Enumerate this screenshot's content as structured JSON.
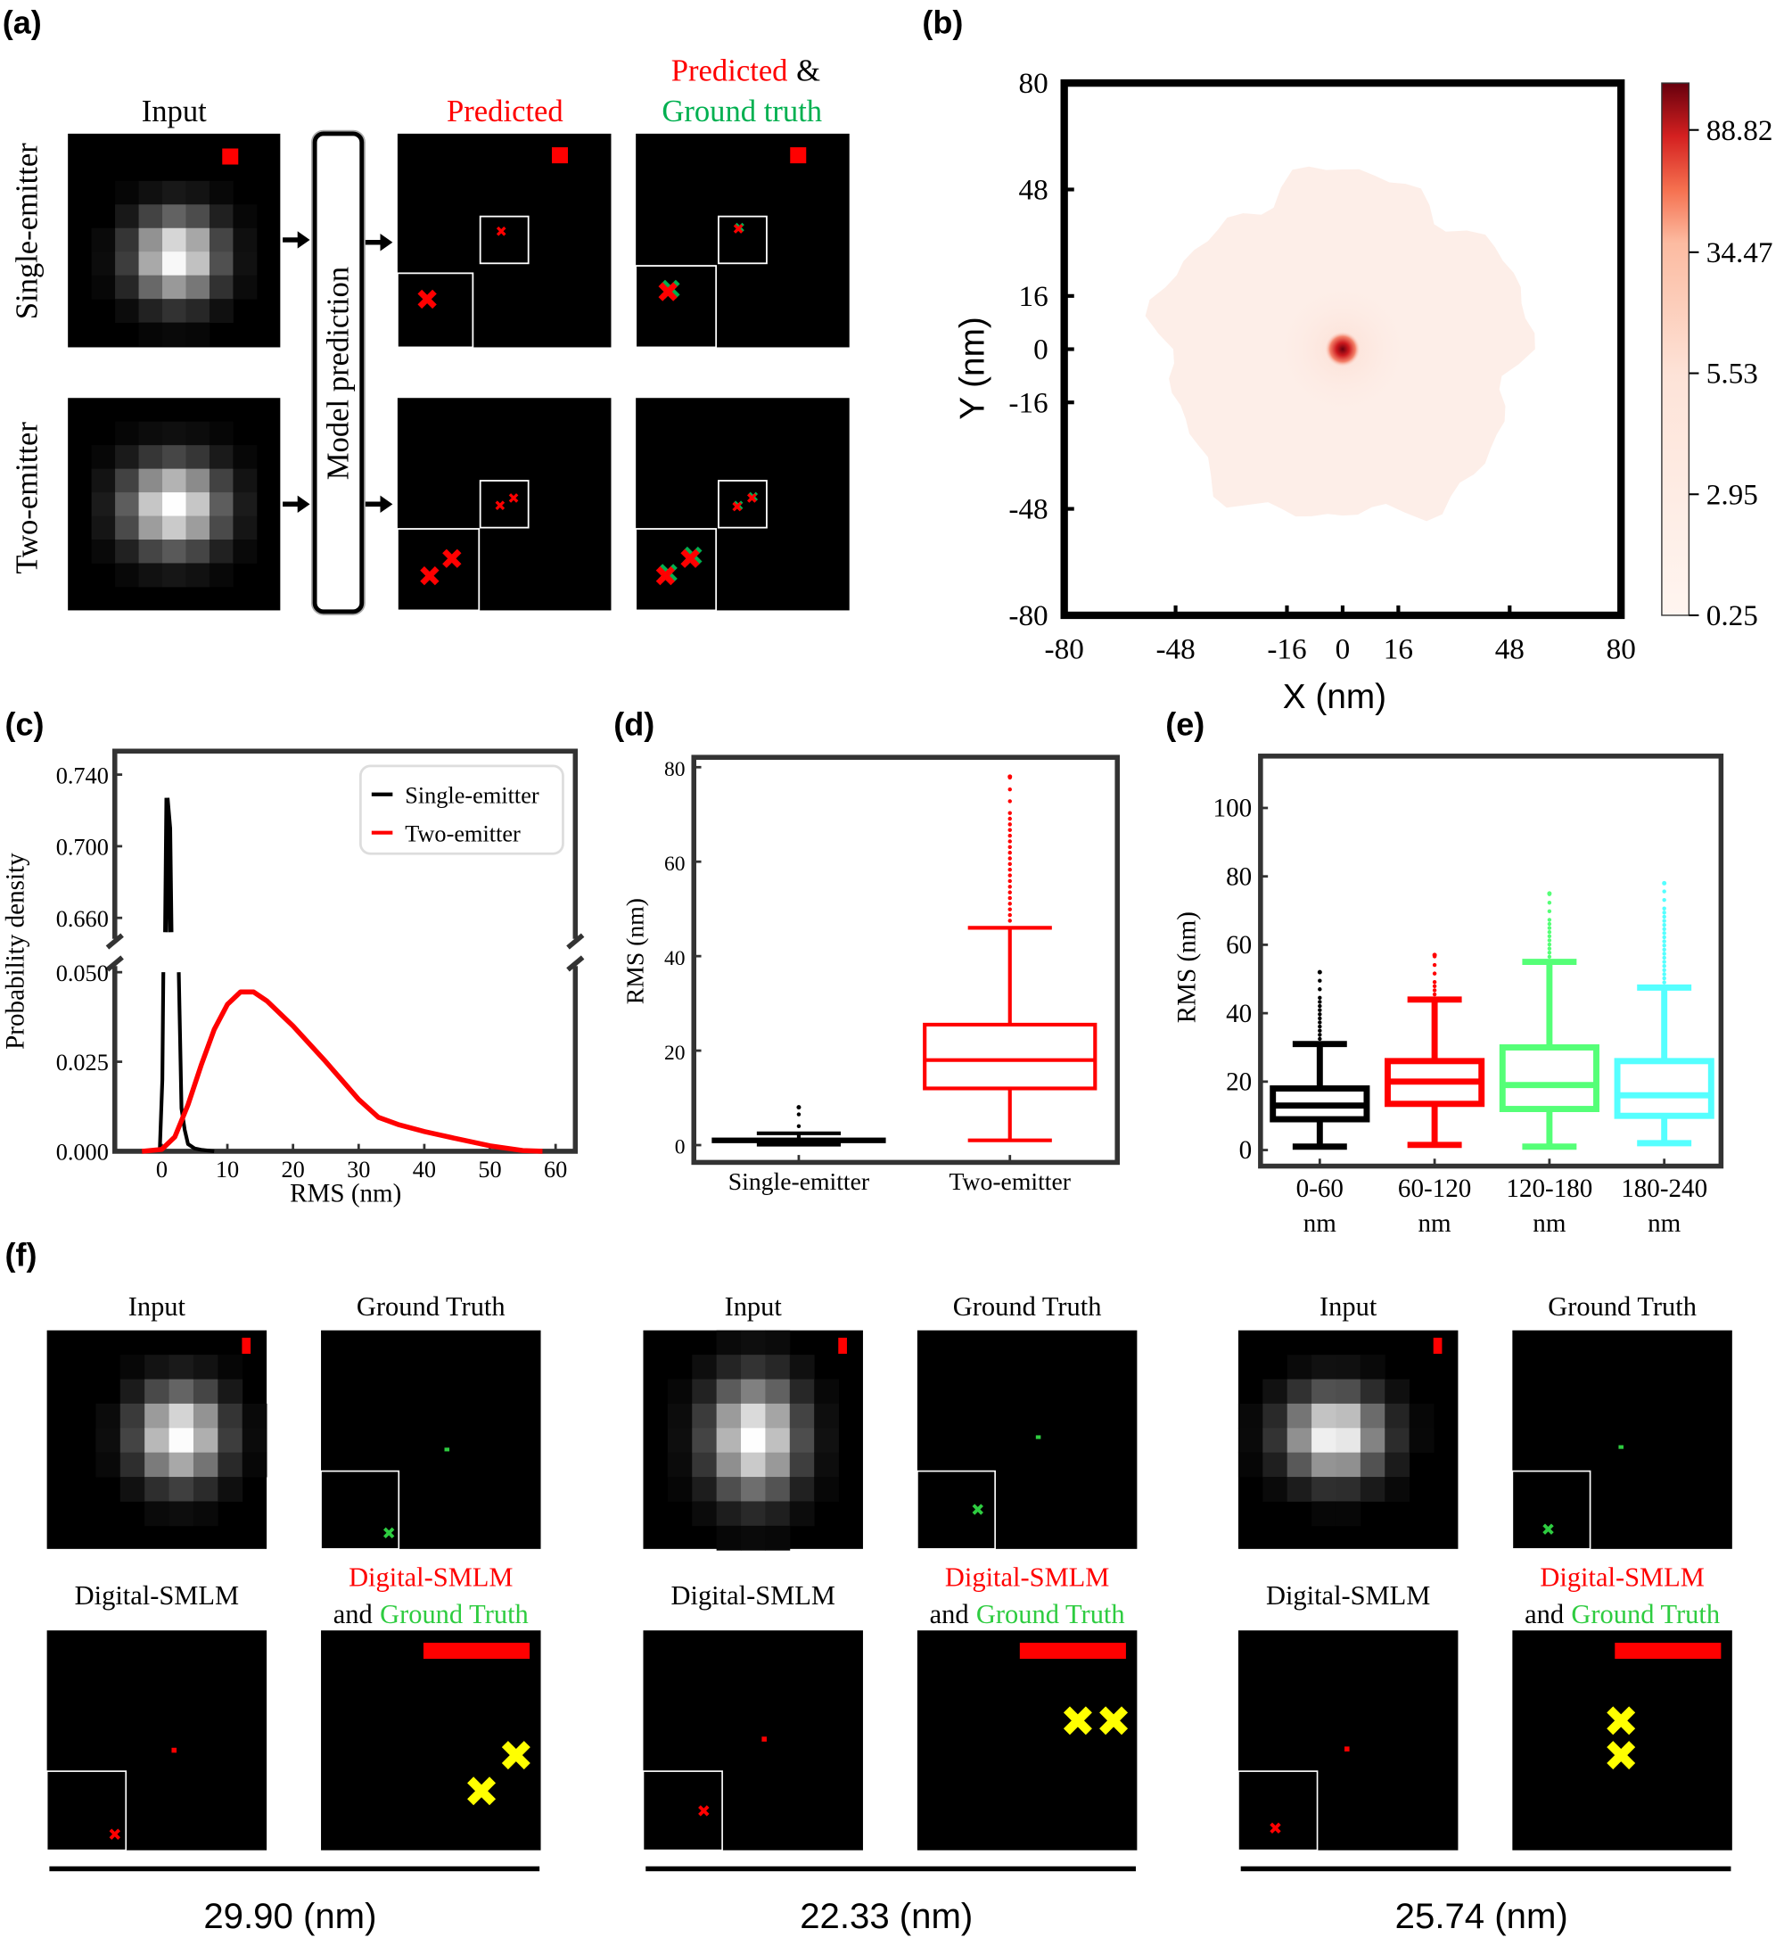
{
  "panel_labels": {
    "a": "(a)",
    "b": "(b)",
    "c": "(c)",
    "d": "(d)",
    "e": "(e)",
    "f": "(f)"
  },
  "panel_a": {
    "col_input": "Input",
    "col_predicted": "Predicted",
    "col_pred_gt_line1": "Predicted",
    "col_pred_gt_amp": "&",
    "col_pred_gt_line2": "Ground truth",
    "row_single": "Single-emitter",
    "row_two": "Two-emitter",
    "model_box": "Model prediction",
    "colors": {
      "predicted": "#ff0000",
      "ground_truth": "#00b050"
    }
  },
  "panel_f": {
    "col_input": "Input",
    "col_gt": "Ground Truth",
    "col_digital": "Digital-SMLM",
    "col_overlay_line1": "Digital-SMLM",
    "col_overlay_and": "and",
    "col_overlay_gt": "Ground Truth",
    "groups": [
      {
        "rms": "29.90 (nm)"
      },
      {
        "rms": "22.33 (nm)"
      },
      {
        "rms": "25.74 (nm)"
      }
    ],
    "colors": {
      "predicted": "#ff0000",
      "ground_truth": "#2ecc40",
      "marker": "#ffff00"
    }
  },
  "chart_data": [
    {
      "id": "b",
      "type": "heatmap",
      "xlabel": "X (nm)",
      "ylabel": "Y (nm)",
      "xlim": [
        -80,
        80
      ],
      "ylim": [
        -80,
        80
      ],
      "xticks": [
        "-80",
        "-48",
        "-16",
        "0",
        "16",
        "48",
        "80"
      ],
      "xtick_values": [
        -80,
        -48,
        -16,
        0,
        16,
        48,
        80
      ],
      "yticks": [
        "80",
        "48",
        "16",
        "0",
        "-16",
        "-48",
        "-80"
      ],
      "ytick_values": [
        80,
        48,
        16,
        0,
        -16,
        -48,
        -80
      ],
      "colorbar_ticks": [
        "88.82",
        "34.47",
        "5.53",
        "2.95",
        "0.25"
      ],
      "peak_center": [
        0,
        0
      ],
      "support_radius": 52,
      "colors": {
        "low": "#fff5f0",
        "high": "#67000d"
      }
    },
    {
      "id": "c",
      "type": "line",
      "xlabel": "RMS (nm)",
      "ylabel": "Probability density",
      "xlim": [
        -7,
        63
      ],
      "xticks": [
        "0",
        "10",
        "20",
        "30",
        "40",
        "50",
        "60"
      ],
      "xtick_values": [
        0,
        10,
        20,
        30,
        40,
        50,
        60
      ],
      "ylim_lower": [
        0,
        0.05
      ],
      "ylim_upper": [
        0.652,
        0.745
      ],
      "yticks_lower": [
        "0.000",
        "0.025",
        "0.050"
      ],
      "ytick_values_lower": [
        0,
        0.025,
        0.05
      ],
      "yticks_upper": [
        "0.660",
        "0.700",
        "0.740"
      ],
      "ytick_values_upper": [
        0.66,
        0.7,
        0.74
      ],
      "axis_break": true,
      "legend_position": "top-right",
      "series": [
        {
          "name": "Single-emitter",
          "color": "#000000",
          "x": [
            -0.3,
            0.1,
            0.4,
            0.8,
            1.2,
            1.6,
            2.0,
            2.6,
            3.0,
            3.5,
            4.0,
            5.0,
            6.0,
            8.0
          ],
          "y": [
            0,
            0.02,
            0.3,
            0.727,
            0.71,
            0.4,
            0.2,
            0.05,
            0.012,
            0.006,
            0.002,
            0.0008,
            0.0004,
            0
          ]
        },
        {
          "name": "Two-emitter",
          "color": "#ff0000",
          "x": [
            -3,
            0,
            2,
            4,
            6,
            8,
            10,
            12,
            14,
            16,
            20,
            25,
            30,
            33,
            36,
            40,
            45,
            50,
            55,
            58
          ],
          "y": [
            0,
            0.0005,
            0.004,
            0.013,
            0.024,
            0.034,
            0.041,
            0.0445,
            0.0445,
            0.042,
            0.035,
            0.025,
            0.0145,
            0.0095,
            0.0075,
            0.0055,
            0.0035,
            0.0015,
            0.0002,
            0
          ]
        }
      ]
    },
    {
      "id": "d",
      "type": "box",
      "xlabel": "",
      "ylabel": "RMS (nm)",
      "ylim": [
        -3,
        82
      ],
      "yticks": [
        "0",
        "20",
        "40",
        "60",
        "80"
      ],
      "ytick_values": [
        0,
        20,
        40,
        60,
        80
      ],
      "categories": [
        "Single-emitter",
        "Two-emitter"
      ],
      "boxes": [
        {
          "color": "#000000",
          "whisker_low": 0.1,
          "q1": 0.8,
          "median": 1.0,
          "q3": 1.2,
          "whisker_high": 2.5,
          "outlier_max": 8
        },
        {
          "color": "#ff0000",
          "whisker_low": 1,
          "q1": 12,
          "median": 18,
          "q3": 25.5,
          "whisker_high": 46,
          "outlier_max": 78
        }
      ]
    },
    {
      "id": "e",
      "type": "box",
      "xlabel": "",
      "ylabel": "RMS (nm)",
      "ylim": [
        -5,
        115
      ],
      "yticks": [
        "0",
        "20",
        "40",
        "60",
        "80",
        "100"
      ],
      "ytick_values": [
        0,
        20,
        40,
        60,
        80,
        100
      ],
      "categories": [
        "0-60",
        "60-120",
        "120-180",
        "180-240"
      ],
      "category_unit": "nm",
      "boxes": [
        {
          "color": "#000000",
          "whisker_low": 1,
          "q1": 9,
          "median": 13,
          "q3": 18,
          "whisker_high": 31,
          "outlier_max": 52
        },
        {
          "color": "#ff0000",
          "whisker_low": 1.5,
          "q1": 13.5,
          "median": 20,
          "q3": 26,
          "whisker_high": 44,
          "outlier_max": 57
        },
        {
          "color": "#55ff77",
          "whisker_low": 1,
          "q1": 12,
          "median": 19,
          "q3": 30,
          "whisker_high": 55,
          "outlier_max": 75
        },
        {
          "color": "#55ffff",
          "whisker_low": 2,
          "q1": 10,
          "median": 16,
          "q3": 26,
          "whisker_high": 47.5,
          "outlier_max": 78
        }
      ]
    }
  ]
}
